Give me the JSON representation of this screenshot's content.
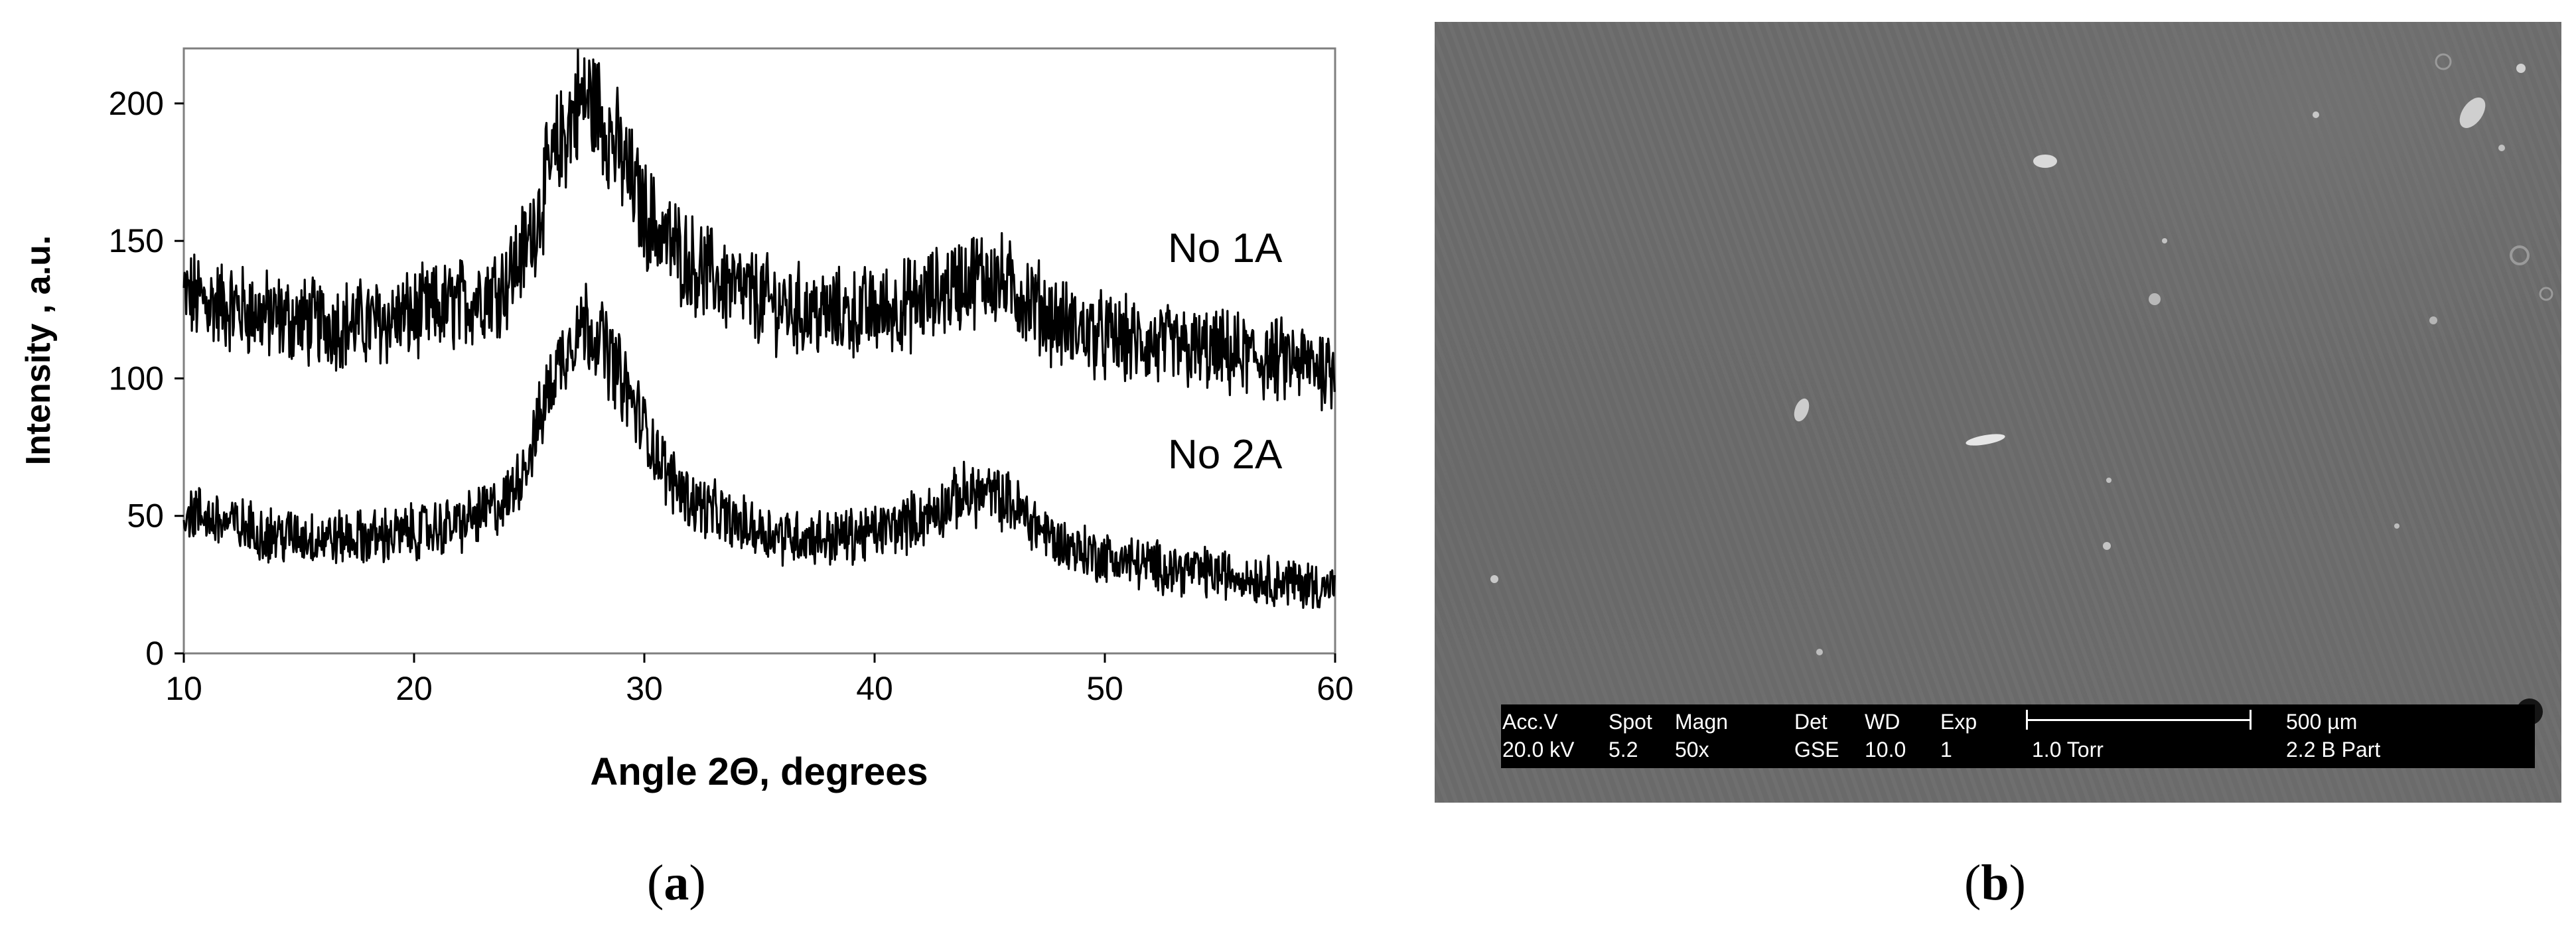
{
  "chart_data": {
    "type": "line",
    "xlabel": "Angle 2Θ, degrees",
    "ylabel": "Intensity , a.u.",
    "xlim": [
      10,
      60
    ],
    "ylim": [
      0,
      220
    ],
    "x_ticks": [
      10,
      20,
      30,
      40,
      50,
      60
    ],
    "y_ticks": [
      0,
      50,
      100,
      150,
      200
    ],
    "grid": false,
    "legend": "none (series labelled directly on plot)",
    "series": [
      {
        "name": "No 1A",
        "x": [
          10,
          12,
          14,
          16,
          18,
          20,
          22,
          24,
          25,
          26,
          27,
          27.5,
          28,
          29,
          30,
          31,
          32,
          34,
          36,
          38,
          40,
          42,
          44,
          45,
          46,
          47,
          48,
          50,
          52,
          54,
          56,
          58,
          60
        ],
        "values": [
          130,
          126,
          122,
          120,
          120,
          123,
          127,
          135,
          150,
          178,
          198,
          202,
          198,
          180,
          160,
          150,
          142,
          132,
          126,
          123,
          124,
          128,
          136,
          138,
          132,
          127,
          120,
          115,
          112,
          110,
          108,
          106,
          104
        ]
      },
      {
        "name": "No 2A",
        "x": [
          10,
          12,
          14,
          16,
          18,
          20,
          22,
          24,
          25,
          26,
          27,
          27.5,
          28,
          29,
          30,
          31,
          32,
          34,
          36,
          38,
          40,
          42,
          44,
          45,
          46,
          47,
          48,
          50,
          52,
          54,
          56,
          58,
          60
        ],
        "values": [
          52,
          47,
          43,
          42,
          42,
          44,
          47,
          55,
          72,
          100,
          118,
          120,
          116,
          100,
          82,
          65,
          56,
          47,
          43,
          42,
          44,
          49,
          58,
          58,
          54,
          47,
          40,
          35,
          32,
          30,
          28,
          26,
          24
        ]
      }
    ]
  },
  "captions": {
    "a_open": "(",
    "a_letter": "a",
    "a_close": ")",
    "b_open": "(",
    "b_letter": "b",
    "b_close": ")"
  },
  "sem": {
    "colors": {
      "background": "#6c6c6c",
      "databar": "#000000",
      "text": "#ffffff"
    },
    "databar": {
      "accv_header": "Acc.V",
      "spot_header": "Spot",
      "magn_header": "Magn",
      "det_header": "Det",
      "wd_header": "WD",
      "exp_header": "Exp",
      "scale_label": "500 µm",
      "accv_value": "20.0 kV",
      "spot_value": "5.2",
      "magn_value": "50x",
      "det_value": "GSE",
      "wd_value": "10.0",
      "exp_value": "1",
      "pressure_value": "1.0 Torr",
      "sample_value": "2.2 B Part"
    }
  }
}
